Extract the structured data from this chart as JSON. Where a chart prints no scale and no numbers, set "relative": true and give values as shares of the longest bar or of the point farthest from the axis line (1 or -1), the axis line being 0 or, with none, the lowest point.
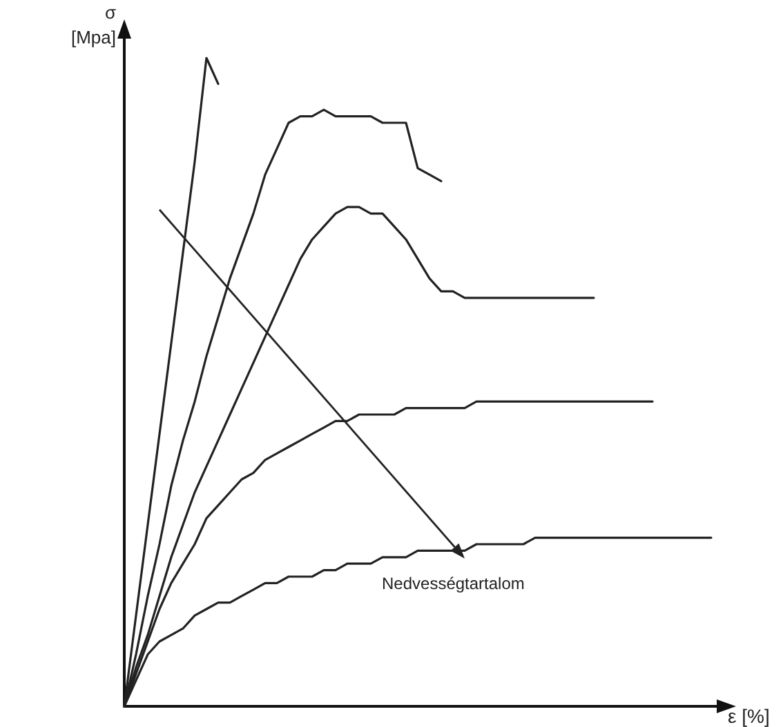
{
  "chart_data": {
    "type": "line",
    "relative": true,
    "xlabel": "ε [%]",
    "ylabel": "σ [Mpa]",
    "grid": false,
    "line_style": "solid",
    "annotations": [
      "Nedvességtartalom"
    ],
    "categories": [
      null,
      null,
      null,
      null,
      null,
      null,
      null,
      null,
      null,
      null,
      null,
      null,
      null,
      null,
      null,
      null,
      null,
      null,
      null,
      null,
      null,
      null,
      null,
      null,
      null,
      null,
      null,
      null,
      null,
      null,
      null,
      null,
      null,
      null,
      null,
      null,
      null,
      null,
      null,
      null,
      null,
      null,
      null,
      null,
      null,
      null,
      null,
      null,
      null,
      null,
      null
    ],
    "series": [
      {
        "color": "#222222",
        "values": [
          0,
          0.14,
          0.28,
          0.42,
          0.56,
          0.7,
          0.84,
          1,
          0.96,
          null,
          null,
          null,
          null,
          null,
          null,
          null,
          null,
          null,
          null,
          null,
          null,
          null,
          null,
          null,
          null,
          null,
          null,
          null,
          null,
          null,
          null,
          null,
          null,
          null,
          null,
          null,
          null,
          null,
          null,
          null,
          null,
          null,
          null,
          null,
          null,
          null,
          null,
          null,
          null,
          null,
          null
        ]
      },
      {
        "color": "#222222",
        "values": [
          0,
          0.08,
          0.17,
          0.25,
          0.34,
          0.41,
          0.47,
          0.54,
          0.6,
          0.66,
          0.71,
          0.76,
          0.82,
          0.86,
          0.9,
          0.91,
          0.91,
          0.92,
          0.91,
          0.91,
          0.91,
          0.91,
          0.9,
          0.9,
          0.9,
          0.83,
          0.82,
          0.81,
          null,
          null,
          null,
          null,
          null,
          null,
          null,
          null,
          null,
          null,
          null,
          null,
          null,
          null,
          null,
          null,
          null,
          null,
          null,
          null,
          null,
          null,
          null
        ]
      },
      {
        "color": "#222222",
        "values": [
          0,
          0.06,
          0.11,
          0.17,
          0.23,
          0.28,
          0.33,
          0.37,
          0.41,
          0.45,
          0.49,
          0.53,
          0.57,
          0.61,
          0.65,
          0.69,
          0.72,
          0.74,
          0.76,
          0.77,
          0.77,
          0.76,
          0.76,
          0.74,
          0.72,
          0.69,
          0.66,
          0.64,
          0.64,
          0.63,
          0.63,
          0.63,
          0.63,
          0.63,
          0.63,
          0.63,
          0.63,
          0.63,
          0.63,
          0.63,
          0.63,
          null,
          null,
          null,
          null,
          null,
          null,
          null,
          null,
          null,
          null
        ]
      },
      {
        "color": "#222222",
        "values": [
          0,
          0.05,
          0.1,
          0.15,
          0.19,
          0.22,
          0.25,
          0.29,
          0.31,
          0.33,
          0.35,
          0.36,
          0.38,
          0.39,
          0.4,
          0.41,
          0.42,
          0.43,
          0.44,
          0.44,
          0.45,
          0.45,
          0.45,
          0.45,
          0.46,
          0.46,
          0.46,
          0.46,
          0.46,
          0.46,
          0.47,
          0.47,
          0.47,
          0.47,
          0.47,
          0.47,
          0.47,
          0.47,
          0.47,
          0.47,
          0.47,
          0.47,
          0.47,
          0.47,
          0.47,
          0.47,
          null,
          null,
          null,
          null,
          null
        ]
      },
      {
        "color": "#222222",
        "values": [
          0,
          0.04,
          0.08,
          0.1,
          0.11,
          0.12,
          0.14,
          0.15,
          0.16,
          0.16,
          0.17,
          0.18,
          0.19,
          0.19,
          0.2,
          0.2,
          0.2,
          0.21,
          0.21,
          0.22,
          0.22,
          0.22,
          0.23,
          0.23,
          0.23,
          0.24,
          0.24,
          0.24,
          0.24,
          0.24,
          0.25,
          0.25,
          0.25,
          0.25,
          0.25,
          0.26,
          0.26,
          0.26,
          0.26,
          0.26,
          0.26,
          0.26,
          0.26,
          0.26,
          0.26,
          0.26,
          0.26,
          0.26,
          0.26,
          0.26,
          0.26
        ]
      }
    ]
  }
}
